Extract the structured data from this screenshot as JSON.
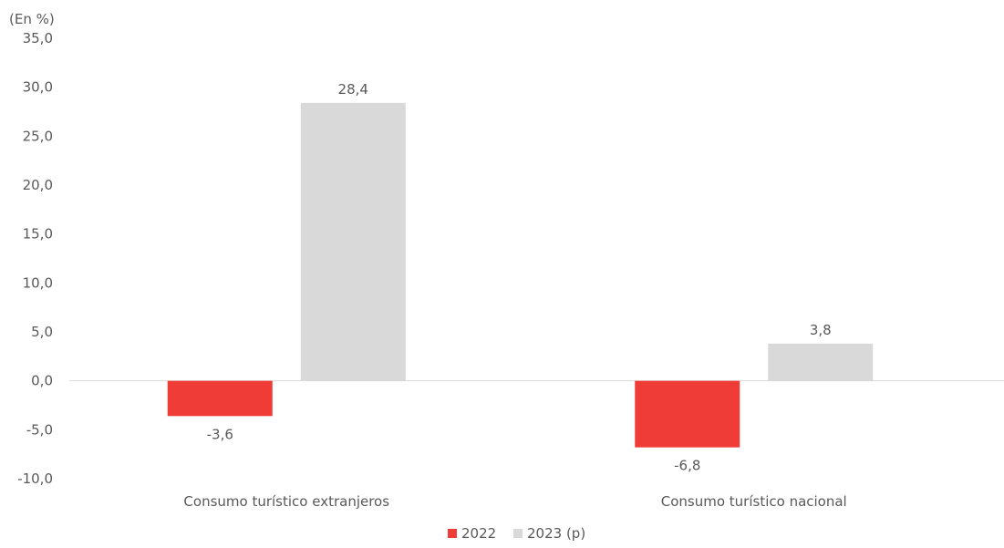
{
  "chart_data": {
    "type": "bar",
    "unit_label": "(En %)",
    "categories": [
      "Consumo turístico extranjeros",
      "Consumo turístico nacional"
    ],
    "series": [
      {
        "name": "2022",
        "values": [
          -3.6,
          -6.8
        ],
        "color": "#f03c36"
      },
      {
        "name": "2023 (p)",
        "values": [
          28.4,
          3.8
        ],
        "color": "#d9d9d9"
      }
    ],
    "data_labels": [
      [
        "-3,6",
        "-6,8"
      ],
      [
        "28,4",
        "3,8"
      ]
    ],
    "ylim": [
      -10,
      35
    ],
    "yticks": [
      35,
      30,
      25,
      20,
      15,
      10,
      5,
      0,
      -5,
      -10
    ],
    "ytick_labels": [
      "35,0",
      "30,0",
      "25,0",
      "20,0",
      "15,0",
      "10,0",
      "5,0",
      "0,0",
      "-5,0",
      "-10,0"
    ],
    "grid": false,
    "legend_position": "bottom"
  }
}
